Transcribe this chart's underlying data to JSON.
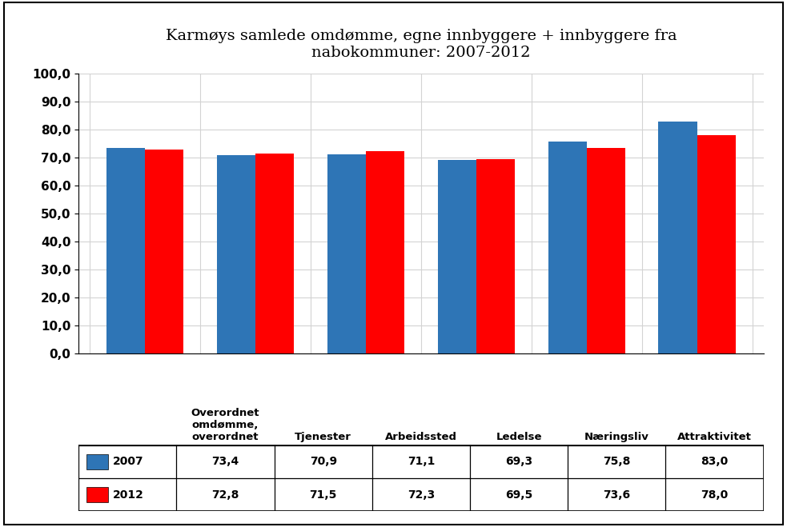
{
  "title": "Karmøys samlede omdømme, egne innbyggere + innbyggere fra\nnabokommuner: 2007-2012",
  "categories": [
    "Overordnet\nomdømme,\noverordnet",
    "Tjenester",
    "Arbeidssted",
    "Ledelse",
    "Næringsliv",
    "Attraktivitet"
  ],
  "categories_short": [
    "Overordnet\nomdømme,\noverordnet",
    "Tjenester",
    "Arbeidssted",
    "Ledelse",
    "Næringsliv",
    "Attraktivitet"
  ],
  "values_2007": [
    73.4,
    70.9,
    71.1,
    69.3,
    75.8,
    83.0
  ],
  "values_2012": [
    72.8,
    71.5,
    72.3,
    69.5,
    73.6,
    78.0
  ],
  "color_2007": "#2E75B6",
  "color_2012": "#FF0000",
  "ylim": [
    0,
    100
  ],
  "yticks": [
    0,
    10,
    20,
    30,
    40,
    50,
    60,
    70,
    80,
    90,
    100
  ],
  "ytick_labels": [
    "0,0",
    "10,0",
    "20,0",
    "30,0",
    "40,0",
    "50,0",
    "60,0",
    "70,0",
    "80,0",
    "90,0",
    "100,0"
  ],
  "legend_labels": [
    "2007",
    "2012"
  ],
  "table_row_2007": [
    "73,4",
    "70,9",
    "71,1",
    "69,3",
    "75,8",
    "83,0"
  ],
  "table_row_2012": [
    "72,8",
    "71,5",
    "72,3",
    "69,5",
    "73,6",
    "78,0"
  ],
  "background_color": "#FFFFFF",
  "bar_width": 0.35,
  "title_fontsize": 14
}
